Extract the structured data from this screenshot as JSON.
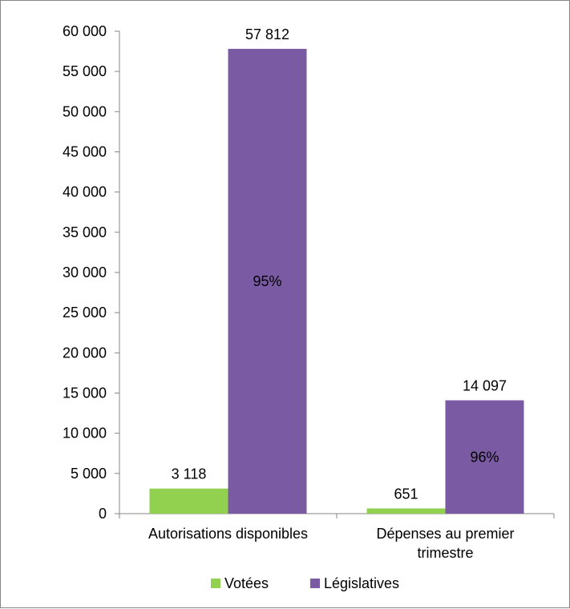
{
  "chart_data": {
    "type": "bar",
    "title": "",
    "xlabel": "",
    "ylabel": "",
    "categories": [
      [
        "Autorisations disponibles"
      ],
      [
        "Dépenses au premier",
        "trimestre"
      ]
    ],
    "ylim": [
      0,
      60000
    ],
    "yticks": [
      "0",
      "5 000",
      "10 000",
      "15 000",
      "20 000",
      "25 000",
      "30 000",
      "35 000",
      "40 000",
      "45 000",
      "50 000",
      "55 000",
      "60 000"
    ],
    "grid": false,
    "legend_position": "bottom",
    "series": [
      {
        "name": "Votées",
        "color": "#92d050",
        "values": [
          3118,
          651
        ],
        "value_labels": [
          "3 118",
          "651"
        ]
      },
      {
        "name": "Législatives",
        "color": "#7a5ba3",
        "values": [
          57812,
          14097
        ],
        "value_labels": [
          "57 812",
          "14 097"
        ],
        "share_labels": [
          "95%",
          "96%"
        ]
      }
    ]
  }
}
